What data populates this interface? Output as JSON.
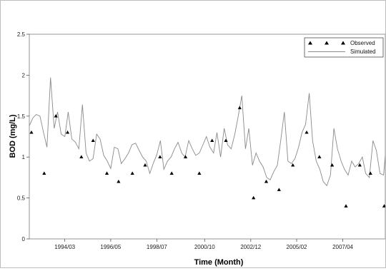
{
  "chart_data": {
    "type": "line",
    "xlabel": "Time (Month)",
    "ylabel": "BOD (mg/L)",
    "ylim": [
      0,
      2.5
    ],
    "xlim": [
      1992.5,
      2009.25
    ],
    "x_ticks": [
      {
        "label": "1994/03",
        "value": 1994.17
      },
      {
        "label": "1996/05",
        "value": 1996.33
      },
      {
        "label": "1998/07",
        "value": 1998.5
      },
      {
        "label": "2000/10",
        "value": 2000.75
      },
      {
        "label": "2002/12",
        "value": 2002.92
      },
      {
        "label": "2005/02",
        "value": 2005.08
      },
      {
        "label": "2007/04",
        "value": 2007.25
      }
    ],
    "y_ticks": [
      "0",
      "0.5",
      "1",
      "1.5",
      "2",
      "2.5"
    ],
    "y_tick_values": [
      0,
      0.5,
      1,
      1.5,
      2,
      2.5
    ],
    "legend": {
      "position": "top-right",
      "entries": [
        {
          "label": "Observed",
          "marker": "triangle"
        },
        {
          "label": "Simulated",
          "marker": "line"
        }
      ]
    },
    "series": [
      {
        "name": "Observed",
        "kind": "scatter",
        "color": "#000000",
        "points": [
          [
            1992.6,
            1.3
          ],
          [
            1993.2,
            0.8
          ],
          [
            1993.75,
            1.5
          ],
          [
            1994.3,
            1.3
          ],
          [
            1994.95,
            1.0
          ],
          [
            1995.5,
            1.2
          ],
          [
            1996.15,
            0.8
          ],
          [
            1996.7,
            0.7
          ],
          [
            1997.35,
            0.8
          ],
          [
            1997.95,
            0.9
          ],
          [
            1998.65,
            1.0
          ],
          [
            1999.2,
            0.8
          ],
          [
            1999.85,
            1.0
          ],
          [
            2000.5,
            0.8
          ],
          [
            2001.1,
            1.2
          ],
          [
            2001.75,
            1.2
          ],
          [
            2002.4,
            1.6
          ],
          [
            2003.05,
            0.5
          ],
          [
            2003.65,
            0.7
          ],
          [
            2004.25,
            0.6
          ],
          [
            2004.9,
            0.9
          ],
          [
            2005.55,
            1.3
          ],
          [
            2006.15,
            1.0
          ],
          [
            2006.75,
            0.9
          ],
          [
            2007.4,
            0.4
          ],
          [
            2008.05,
            0.9
          ],
          [
            2008.55,
            0.8
          ],
          [
            2009.2,
            0.4
          ]
        ]
      },
      {
        "name": "Simulated",
        "kind": "line",
        "color": "#8a8a8a",
        "points": [
          [
            1992.5,
            1.38
          ],
          [
            1992.67,
            1.48
          ],
          [
            1992.83,
            1.52
          ],
          [
            1993.0,
            1.5
          ],
          [
            1993.17,
            1.3
          ],
          [
            1993.33,
            1.12
          ],
          [
            1993.5,
            1.97
          ],
          [
            1993.67,
            1.35
          ],
          [
            1993.83,
            1.55
          ],
          [
            1994.0,
            1.28
          ],
          [
            1994.17,
            1.25
          ],
          [
            1994.33,
            1.55
          ],
          [
            1994.5,
            1.22
          ],
          [
            1994.67,
            1.18
          ],
          [
            1994.83,
            1.1
          ],
          [
            1995.0,
            1.64
          ],
          [
            1995.17,
            1.05
          ],
          [
            1995.33,
            0.95
          ],
          [
            1995.5,
            0.98
          ],
          [
            1995.67,
            1.28
          ],
          [
            1995.83,
            1.22
          ],
          [
            1996.0,
            1.02
          ],
          [
            1996.17,
            0.95
          ],
          [
            1996.33,
            0.86
          ],
          [
            1996.5,
            1.12
          ],
          [
            1996.67,
            1.1
          ],
          [
            1996.83,
            0.92
          ],
          [
            1997.0,
            0.98
          ],
          [
            1997.17,
            1.05
          ],
          [
            1997.33,
            1.15
          ],
          [
            1997.5,
            1.17
          ],
          [
            1997.67,
            1.08
          ],
          [
            1997.83,
            1.0
          ],
          [
            1998.0,
            0.95
          ],
          [
            1998.17,
            0.8
          ],
          [
            1998.33,
            0.92
          ],
          [
            1998.5,
            1.03
          ],
          [
            1998.67,
            1.2
          ],
          [
            1998.83,
            0.85
          ],
          [
            1999.0,
            0.95
          ],
          [
            1999.17,
            1.0
          ],
          [
            1999.33,
            1.1
          ],
          [
            1999.5,
            1.18
          ],
          [
            1999.67,
            1.05
          ],
          [
            1999.83,
            1.0
          ],
          [
            2000.0,
            1.2
          ],
          [
            2000.17,
            1.1
          ],
          [
            2000.33,
            1.02
          ],
          [
            2000.5,
            1.05
          ],
          [
            2000.67,
            1.15
          ],
          [
            2000.83,
            1.25
          ],
          [
            2001.0,
            1.12
          ],
          [
            2001.17,
            1.05
          ],
          [
            2001.33,
            1.3
          ],
          [
            2001.5,
            1.0
          ],
          [
            2001.67,
            1.35
          ],
          [
            2001.83,
            1.15
          ],
          [
            2002.0,
            1.1
          ],
          [
            2002.17,
            1.28
          ],
          [
            2002.33,
            1.5
          ],
          [
            2002.5,
            1.75
          ],
          [
            2002.67,
            1.1
          ],
          [
            2002.83,
            1.35
          ],
          [
            2003.0,
            0.9
          ],
          [
            2003.17,
            1.05
          ],
          [
            2003.33,
            0.95
          ],
          [
            2003.5,
            0.88
          ],
          [
            2003.67,
            0.75
          ],
          [
            2003.83,
            0.72
          ],
          [
            2004.0,
            0.82
          ],
          [
            2004.17,
            0.9
          ],
          [
            2004.33,
            1.2
          ],
          [
            2004.5,
            1.55
          ],
          [
            2004.67,
            0.95
          ],
          [
            2004.83,
            0.92
          ],
          [
            2005.0,
            0.98
          ],
          [
            2005.17,
            1.12
          ],
          [
            2005.33,
            1.3
          ],
          [
            2005.5,
            1.4
          ],
          [
            2005.67,
            1.78
          ],
          [
            2005.83,
            1.2
          ],
          [
            2006.0,
            0.95
          ],
          [
            2006.17,
            0.85
          ],
          [
            2006.33,
            0.7
          ],
          [
            2006.5,
            0.65
          ],
          [
            2006.67,
            0.78
          ],
          [
            2006.83,
            1.35
          ],
          [
            2007.0,
            1.1
          ],
          [
            2007.17,
            0.95
          ],
          [
            2007.33,
            0.85
          ],
          [
            2007.5,
            0.78
          ],
          [
            2007.67,
            0.95
          ],
          [
            2007.83,
            0.88
          ],
          [
            2008.0,
            0.92
          ],
          [
            2008.17,
            1.0
          ],
          [
            2008.33,
            0.8
          ],
          [
            2008.5,
            0.75
          ],
          [
            2008.67,
            1.2
          ],
          [
            2008.83,
            1.08
          ],
          [
            2009.0,
            0.8
          ],
          [
            2009.17,
            0.78
          ],
          [
            2009.25,
            1.02
          ]
        ]
      }
    ]
  }
}
